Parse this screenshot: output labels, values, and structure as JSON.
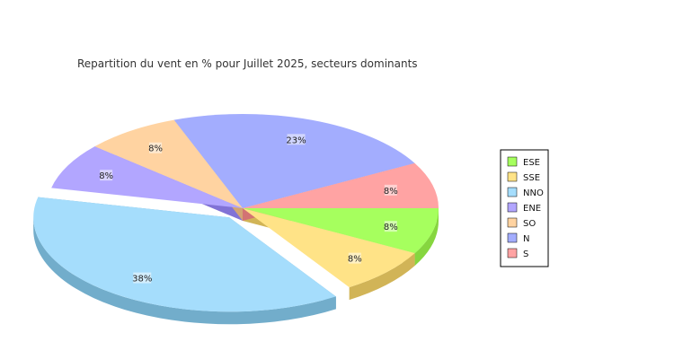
{
  "chart_data": {
    "type": "pie",
    "title": "Repartition du vent en % pour Juillet 2025, secteurs dominants",
    "legend_position": "right",
    "slices": [
      {
        "name": "ESE",
        "value": 8,
        "label": "8%",
        "color": "#a6ff5e",
        "side": "#86d63f",
        "exploded": false
      },
      {
        "name": "SSE",
        "value": 8,
        "label": "8%",
        "color": "#ffe387",
        "side": "#d1b457",
        "exploded": false
      },
      {
        "name": "NNO",
        "value": 38,
        "label": "38%",
        "color": "#a5ddfc",
        "side": "#72adcb",
        "exploded": true
      },
      {
        "name": "ENE",
        "value": 8,
        "label": "8%",
        "color": "#b2a6ff",
        "side": "#8172d6",
        "exploded": false
      },
      {
        "name": "SO",
        "value": 8,
        "label": "8%",
        "color": "#ffd3a1",
        "side": "#d3a473",
        "exploded": false
      },
      {
        "name": "N",
        "value": 23,
        "label": "23%",
        "color": "#a3adfe",
        "side": "#7580d3",
        "exploded": false
      },
      {
        "name": "S",
        "value": 8,
        "label": "8%",
        "color": "#ffa3a3",
        "side": "#d37373",
        "exploded": false
      }
    ]
  }
}
